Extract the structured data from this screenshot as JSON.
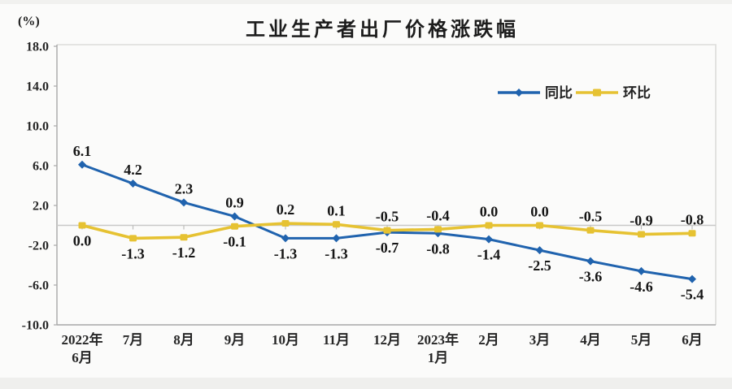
{
  "page": {
    "background": "#fbfbfa",
    "band_color": "#efefed"
  },
  "chart_data": {
    "type": "line",
    "title": "工业生产者出厂价格涨跌幅",
    "unit_label": "(%)",
    "categories": [
      "2022年\n6月",
      "7月",
      "8月",
      "9月",
      "10月",
      "11月",
      "12月",
      "2023年\n1月",
      "2月",
      "3月",
      "4月",
      "5月",
      "6月"
    ],
    "series": [
      {
        "name": "同比",
        "color": "#2063ae",
        "marker": "diamond",
        "values": [
          6.1,
          4.2,
          2.3,
          0.9,
          -1.3,
          -1.3,
          -0.7,
          -0.8,
          -1.4,
          -2.5,
          -3.6,
          -4.6,
          -5.4
        ]
      },
      {
        "name": "环比",
        "color": "#e6c232",
        "marker": "square",
        "values": [
          0.0,
          -1.3,
          -1.2,
          -0.1,
          0.2,
          0.1,
          -0.5,
          -0.4,
          0.0,
          0.0,
          -0.5,
          -0.9,
          -0.8
        ]
      }
    ],
    "y_ticks": [
      18.0,
      14.0,
      10.0,
      6.0,
      2.0,
      -2.0,
      -6.0,
      -10.0
    ],
    "ylim": [
      -10.0,
      18.0
    ],
    "grid": "zero-line-only",
    "legend_position": "top-right-inside",
    "label_color": "#161616",
    "axis_text_color": "#262626",
    "axis_line_color": "#a8a8a8",
    "border_color": "#dcdcda",
    "zero_line_color": "#c9c9c7"
  }
}
